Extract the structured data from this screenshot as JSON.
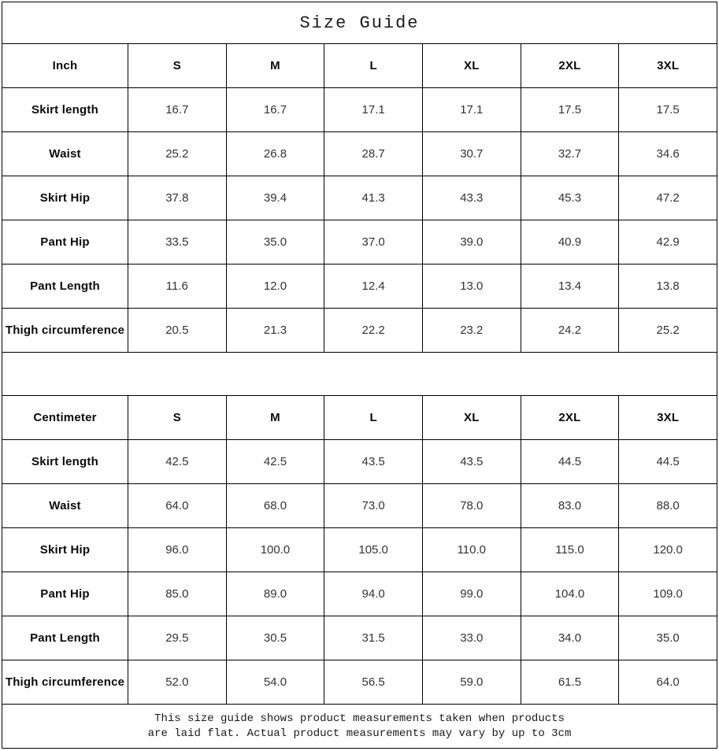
{
  "page": {
    "title": "Size Guide"
  },
  "colors": {
    "border": "#000000",
    "label_text": "#0a0a0a",
    "value_text": "#333333",
    "background": "#ffffff"
  },
  "tables": [
    {
      "unit_header": "Inch",
      "size_headers": [
        "S",
        "M",
        "L",
        "XL",
        "2XL",
        "3XL"
      ],
      "rows": [
        {
          "label": "Skirt length",
          "values": [
            "16.7",
            "16.7",
            "17.1",
            "17.1",
            "17.5",
            "17.5"
          ]
        },
        {
          "label": "Waist",
          "values": [
            "25.2",
            "26.8",
            "28.7",
            "30.7",
            "32.7",
            "34.6"
          ]
        },
        {
          "label": "Skirt Hip",
          "values": [
            "37.8",
            "39.4",
            "41.3",
            "43.3",
            "45.3",
            "47.2"
          ]
        },
        {
          "label": "Pant Hip",
          "values": [
            "33.5",
            "35.0",
            "37.0",
            "39.0",
            "40.9",
            "42.9"
          ]
        },
        {
          "label": "Pant Length",
          "values": [
            "11.6",
            "12.0",
            "12.4",
            "13.0",
            "13.4",
            "13.8"
          ]
        },
        {
          "label": "Thigh circumference",
          "values": [
            "20.5",
            "21.3",
            "22.2",
            "23.2",
            "24.2",
            "25.2"
          ]
        }
      ]
    },
    {
      "unit_header": "Centimeter",
      "size_headers": [
        "S",
        "M",
        "L",
        "XL",
        "2XL",
        "3XL"
      ],
      "rows": [
        {
          "label": "Skirt length",
          "values": [
            "42.5",
            "42.5",
            "43.5",
            "43.5",
            "44.5",
            "44.5"
          ]
        },
        {
          "label": "Waist",
          "values": [
            "64.0",
            "68.0",
            "73.0",
            "78.0",
            "83.0",
            "88.0"
          ]
        },
        {
          "label": "Skirt Hip",
          "values": [
            "96.0",
            "100.0",
            "105.0",
            "110.0",
            "115.0",
            "120.0"
          ]
        },
        {
          "label": "Pant Hip",
          "values": [
            "85.0",
            "89.0",
            "94.0",
            "99.0",
            "104.0",
            "109.0"
          ]
        },
        {
          "label": "Pant Length",
          "values": [
            "29.5",
            "30.5",
            "31.5",
            "33.0",
            "34.0",
            "35.0"
          ]
        },
        {
          "label": "Thigh circumference",
          "values": [
            "52.0",
            "54.0",
            "56.5",
            "59.0",
            "61.5",
            "64.0"
          ]
        }
      ]
    }
  ],
  "footer": {
    "line1": "This size guide shows product measurements taken when products",
    "line2": "are laid flat. Actual product measurements may vary by up to 3cm"
  }
}
